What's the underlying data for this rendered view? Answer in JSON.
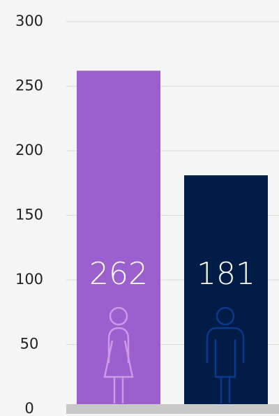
{
  "chart_data": {
    "type": "bar",
    "categories": [
      null,
      null
    ],
    "values": [
      262,
      181
    ],
    "colors": [
      "#9b5fce",
      "#001c47"
    ],
    "ylim": [
      0,
      300
    ],
    "yticks": [
      0,
      50,
      100,
      150,
      200,
      250,
      300
    ],
    "grid": true
  }
}
